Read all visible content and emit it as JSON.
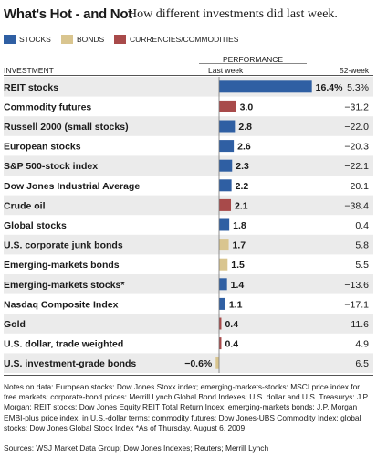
{
  "header": {
    "title": "What's Hot - and Not",
    "subtitle": "How different investments did last week."
  },
  "legend": [
    {
      "label": "STOCKS",
      "color": "#2f5fa3"
    },
    {
      "label": "BONDS",
      "color": "#d9c58f"
    },
    {
      "label": "CURRENCIES/COMMODITIES",
      "color": "#a84a4a"
    }
  ],
  "table_header": {
    "performance": "PERFORMANCE",
    "investment": "INVESTMENT",
    "last_week": "Last week",
    "weeks_52": "52-week"
  },
  "chart_data": {
    "type": "bar",
    "categories": [
      "REIT stocks",
      "Commodity futures",
      "Russell 2000 (small stocks)",
      "European stocks",
      "S&P 500-stock index",
      "Dow Jones Industrial Average",
      "Crude oil",
      "Global stocks",
      "U.S. corporate junk bonds",
      "Emerging-markets bonds",
      "Emerging-markets stocks*",
      "Nasdaq Composite Index",
      "Gold",
      "U.S. dollar, trade weighted",
      "U.S. investment-grade bonds"
    ],
    "last_week_labels": [
      "16.4%",
      "3.0",
      "2.8",
      "2.6",
      "2.3",
      "2.2",
      "2.1",
      "1.8",
      "1.7",
      "1.5",
      "1.4",
      "1.1",
      "0.4",
      "0.4",
      "−0.6%"
    ],
    "values": [
      16.4,
      3.0,
      2.8,
      2.6,
      2.3,
      2.2,
      2.1,
      1.8,
      1.7,
      1.5,
      1.4,
      1.1,
      0.4,
      0.4,
      -0.6
    ],
    "week52_labels": [
      "5.3%",
      "−31.2",
      "−22.0",
      "−20.3",
      "−22.1",
      "−20.1",
      "−38.4",
      "0.4",
      "5.8",
      "5.5",
      "−13.6",
      "−17.1",
      "11.6",
      "4.9",
      "6.5"
    ],
    "week52": [
      5.3,
      -31.2,
      -22.0,
      -20.3,
      -22.1,
      -20.1,
      -38.4,
      0.4,
      5.8,
      5.5,
      -13.6,
      -17.1,
      11.6,
      4.9,
      6.5
    ],
    "groups": [
      "stocks",
      "currencies/commodities",
      "stocks",
      "stocks",
      "stocks",
      "stocks",
      "currencies/commodities",
      "stocks",
      "bonds",
      "bonds",
      "stocks",
      "stocks",
      "currencies/commodities",
      "currencies/commodities",
      "bonds"
    ],
    "group_colors": {
      "stocks": "#2f5fa3",
      "bonds": "#d9c58f",
      "currencies/commodities": "#a84a4a"
    },
    "row_shading": "#ebebeb"
  },
  "notes": "Notes on data: European stocks: Dow Jones Stoxx index; emerging-markets-stocks: MSCI price index for free markets; corporate-bond prices: Merrill Lynch Global Bond Indexes; U.S. dollar and U.S. Treasurys: J.P. Morgan; REIT stocks: Dow Jones Equity REIT Total Return Index; emerging-markets bonds: J.P. Morgan EMBI-plus price index, in U.S.-dollar terms; commodity futures: Dow Jones-UBS Commodity Index; global stocks: Dow Jones Global Stock Index   *As of Thursday, August 6, 2009",
  "sources": "Sources: WSJ Market Data Group; Dow Jones Indexes; Reuters; Merrill Lynch"
}
